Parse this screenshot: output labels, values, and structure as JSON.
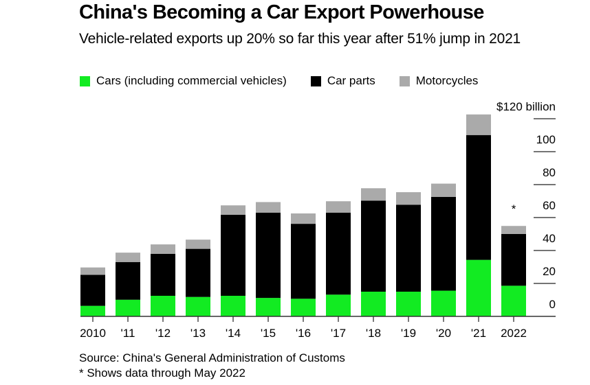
{
  "header": {
    "title": "China's Becoming a Car Export Powerhouse",
    "subtitle": "Vehicle-related exports up 20% so far this year after 51% jump in 2021"
  },
  "legend": [
    {
      "label": "Cars (including commercial vehicles)",
      "color": "#12eb22"
    },
    {
      "label": "Car parts",
      "color": "#000000"
    },
    {
      "label": "Motorcycles",
      "color": "#aaaaaa"
    }
  ],
  "footer": {
    "source": "Source: China's General Administration of Customs",
    "note": "* Shows data through May 2022"
  },
  "chart_data": {
    "type": "bar",
    "stacked": true,
    "title": "China's Becoming a Car Export Powerhouse",
    "subtitle": "Vehicle-related exports up 20% so far this year after 51% jump in 2021",
    "xlabel": "",
    "ylabel": "$ billion",
    "categories": [
      "2010",
      "'11",
      "'12",
      "'13",
      "'14",
      "'15",
      "'16",
      "'17",
      "'18",
      "'19",
      "'20",
      "'21",
      "2022"
    ],
    "series": [
      {
        "name": "Cars (including commercial vehicles)",
        "color": "#12eb22",
        "values": [
          6.4,
          10.1,
          12.5,
          11.8,
          12.5,
          11.2,
          10.7,
          13.2,
          15.0,
          15.0,
          15.6,
          34.3,
          18.6
        ]
      },
      {
        "name": "Car parts",
        "color": "#000000",
        "values": [
          18.8,
          22.9,
          25.5,
          29.2,
          49.2,
          51.8,
          45.5,
          49.8,
          55.3,
          52.8,
          56.9,
          75.8,
          31.4
        ]
      },
      {
        "name": "Motorcycles",
        "color": "#aaaaaa",
        "values": [
          4.5,
          5.7,
          5.7,
          5.6,
          5.7,
          6.4,
          6.3,
          6.9,
          7.5,
          7.6,
          8.1,
          12.5,
          4.9
        ]
      }
    ],
    "ylim": [
      0,
      120
    ],
    "yticks": [
      0,
      20,
      40,
      60,
      80,
      100,
      120
    ],
    "ytick_labels": [
      "0",
      "20",
      "40",
      "60",
      "80",
      "100",
      "$120 billion"
    ],
    "y_axis_side": "right",
    "grid": false,
    "legend_position": "top-left",
    "annotations": [
      {
        "text": "*",
        "category": "2022",
        "value": 68
      }
    ]
  }
}
